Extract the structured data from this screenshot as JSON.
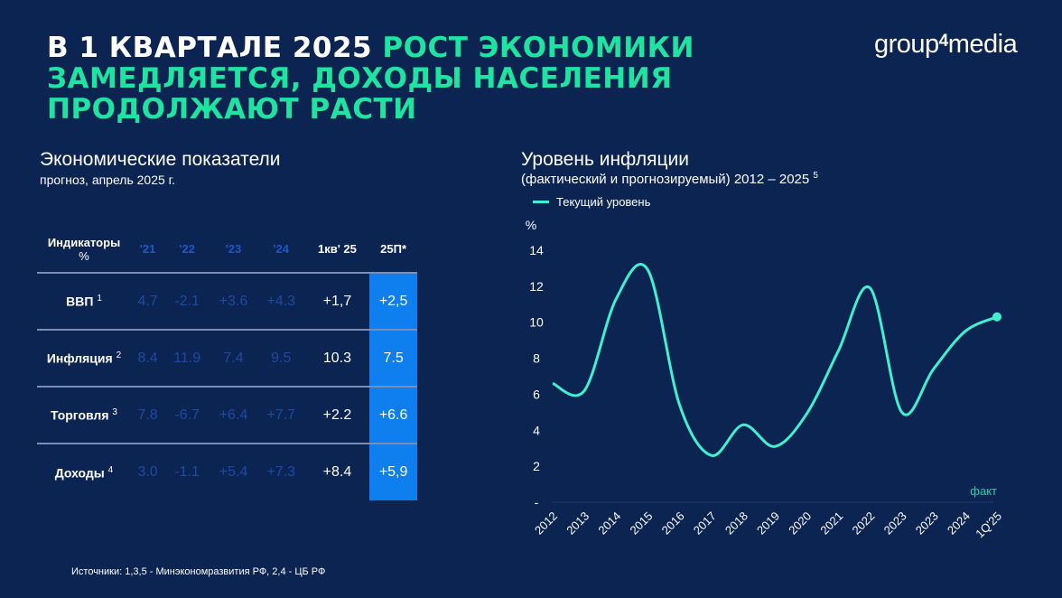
{
  "title": {
    "part1": "В 1 КВАРТАЛЕ 2025 ",
    "part2": "РОСТ ЭКОНОМИКИ ЗАМЕДЛЯЕТСЯ, ДОХОДЫ НАСЕЛЕНИЯ ПРОДОЛЖАЮТ РАСТИ"
  },
  "logo": {
    "a": "group",
    "b": "4",
    "c": "media"
  },
  "left": {
    "title": "Экономические показатели",
    "subtitle": "прогноз, апрель 2025 г.",
    "headers": [
      "Индикаторы",
      "%",
      "'21",
      "'22",
      "'23",
      "'24",
      "1кв' 25",
      "25П*"
    ],
    "rows": [
      {
        "label": "ВВП",
        "note": "1",
        "values": [
          "4.7",
          "-2.1",
          "+3.6",
          "+4.3",
          "+1,7",
          "+2,5"
        ]
      },
      {
        "label": "Инфляция",
        "note": "2",
        "values": [
          "8.4",
          "11.9",
          "7.4",
          "9.5",
          "10.3",
          "7.5"
        ]
      },
      {
        "label": "Торговля",
        "note": "3",
        "values": [
          "7.8",
          "-6.7",
          "+6.4",
          "+7.7",
          "+2.2",
          "+6.6"
        ]
      },
      {
        "label": "Доходы",
        "note": "4",
        "values": [
          "3.0",
          "-1.1",
          "+5.4",
          "+7.3",
          "+8.4",
          "+5,9"
        ]
      }
    ]
  },
  "right": {
    "title": "Уровень инфляции",
    "subtitle": "(фактический и прогнозируемый) 2012 – 2025",
    "sup": "5"
  },
  "source": "Источники: 1,3,5 - Минэкономразвития  РФ, 2,4 - ЦБ РФ",
  "chart_data": {
    "type": "line",
    "legend": [
      "Текущий уровень"
    ],
    "ylabel": "%",
    "ylim": [
      0,
      14
    ],
    "yticks": [
      "-",
      "2",
      "4",
      "6",
      "8",
      "10",
      "12",
      "14"
    ],
    "categories": [
      "2012",
      "2013",
      "2014",
      "2015",
      "2016",
      "2017",
      "2018",
      "2019",
      "2020",
      "2021",
      "2022",
      "2023",
      "2023",
      "2024",
      "1Q'25"
    ],
    "series": [
      {
        "name": "Текущий уровень",
        "color": "#3ff1d0",
        "values": [
          6.6,
          6.2,
          11.3,
          12.9,
          5.4,
          2.6,
          4.3,
          3.1,
          4.9,
          8.4,
          11.9,
          5.0,
          7.4,
          9.5,
          10.3
        ]
      }
    ],
    "annotation": "факт"
  }
}
